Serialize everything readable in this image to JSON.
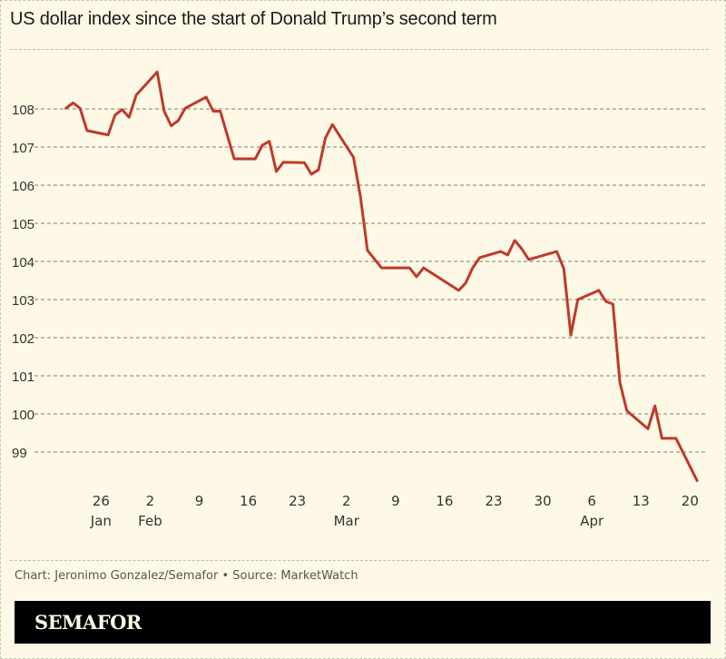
{
  "chart_data": {
    "type": "line",
    "title": "US dollar index since the start of Donald Trump’s second term",
    "xlabel": "",
    "ylabel": "",
    "x_unit": "days since Jan 20, 2025",
    "ylim": [
      98,
      109
    ],
    "xlim": [
      0,
      92
    ],
    "grid": true,
    "y_ticks": [
      99,
      100,
      101,
      102,
      103,
      104,
      105,
      106,
      107,
      108
    ],
    "x_ticks": [
      {
        "day": 6,
        "label": "26",
        "month": "Jan"
      },
      {
        "day": 13,
        "label": "2",
        "month": "Feb"
      },
      {
        "day": 20,
        "label": "9",
        "month": ""
      },
      {
        "day": 27,
        "label": "16",
        "month": ""
      },
      {
        "day": 34,
        "label": "23",
        "month": ""
      },
      {
        "day": 41,
        "label": "2",
        "month": "Mar"
      },
      {
        "day": 48,
        "label": "9",
        "month": ""
      },
      {
        "day": 55,
        "label": "16",
        "month": ""
      },
      {
        "day": 62,
        "label": "23",
        "month": ""
      },
      {
        "day": 69,
        "label": "30",
        "month": ""
      },
      {
        "day": 76,
        "label": "6",
        "month": "Apr"
      },
      {
        "day": 83,
        "label": "13",
        "month": ""
      },
      {
        "day": 90,
        "label": "20",
        "month": ""
      }
    ],
    "series": [
      {
        "name": "US dollar index",
        "color": "#c0392b",
        "x": [
          1,
          2,
          3,
          4,
          7,
          8,
          9,
          10,
          11,
          14,
          15,
          16,
          17,
          18,
          21,
          22,
          23,
          25,
          28,
          29,
          30,
          31,
          32,
          35,
          36,
          37,
          38,
          39,
          42,
          43,
          44,
          46,
          50,
          51,
          52,
          57,
          58,
          59,
          60,
          63,
          64,
          65,
          66,
          67,
          71,
          72,
          73,
          74,
          77,
          78,
          79,
          80,
          81,
          84,
          85,
          86,
          88,
          91
        ],
        "values": [
          108.02,
          108.16,
          108.02,
          107.43,
          107.32,
          107.84,
          107.98,
          107.78,
          108.36,
          108.97,
          107.94,
          107.56,
          107.69,
          108.02,
          108.31,
          107.94,
          107.94,
          106.69,
          106.69,
          107.05,
          107.15,
          106.36,
          106.6,
          106.59,
          106.29,
          106.4,
          107.24,
          107.59,
          106.73,
          105.7,
          104.29,
          103.83,
          103.83,
          103.6,
          103.83,
          103.24,
          103.43,
          103.83,
          104.1,
          104.26,
          104.17,
          104.55,
          104.33,
          104.05,
          104.26,
          103.81,
          102.07,
          103.0,
          103.24,
          102.95,
          102.88,
          100.82,
          100.08,
          99.61,
          100.21,
          99.36,
          99.36,
          98.25
        ]
      }
    ]
  },
  "credit": "Chart: Jeronimo Gonzalez/Semafor • Source: MarketWatch",
  "brand": "SEMAFOR"
}
